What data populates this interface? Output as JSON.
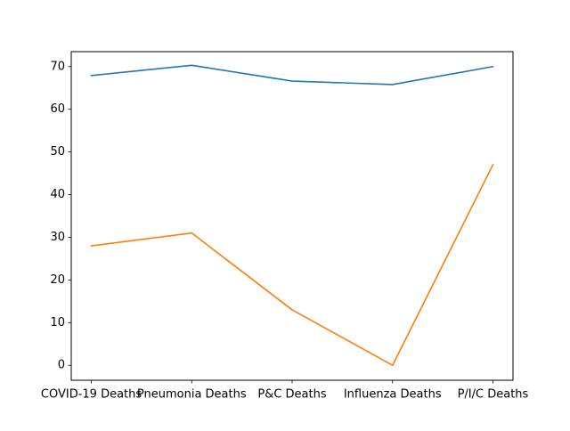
{
  "chart_data": {
    "type": "line",
    "title": "",
    "xlabel": "",
    "ylabel": "",
    "categories": [
      "COVID-19 Deaths",
      "Pneumonia Deaths",
      "P&C Deaths",
      "Influenza Deaths",
      "P/I/C Deaths"
    ],
    "ylim": [
      -3.5,
      73.5
    ],
    "yticks": [
      0,
      10,
      20,
      30,
      40,
      50,
      60,
      70
    ],
    "grid": false,
    "legend": "none",
    "series": [
      {
        "color": "#1f77b4",
        "values": [
          67.9,
          70.3,
          66.6,
          65.8,
          70.0
        ]
      },
      {
        "color": "#ff7f0e",
        "values": [
          28,
          31,
          13,
          0,
          47
        ]
      }
    ]
  }
}
